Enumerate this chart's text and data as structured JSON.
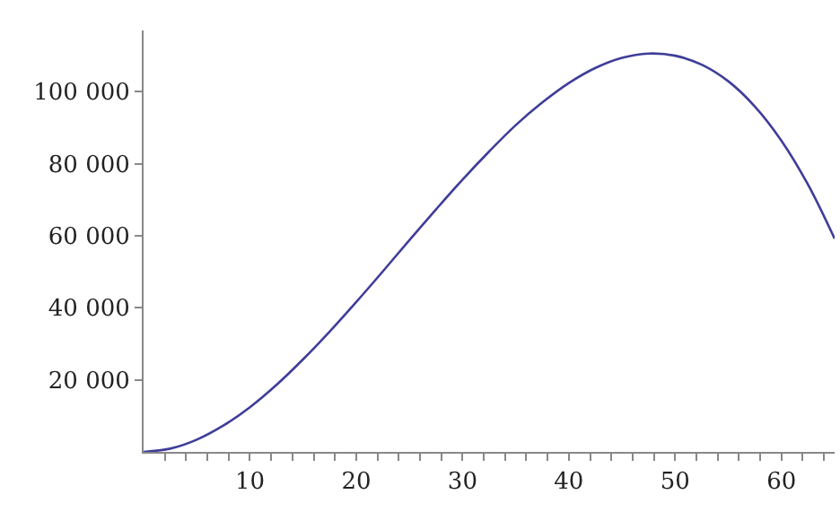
{
  "chart_data": {
    "type": "line",
    "x": [
      0,
      2.5,
      5,
      7.5,
      10,
      12.5,
      15,
      17.5,
      20,
      22.5,
      25,
      27.5,
      30,
      32.5,
      35,
      37.5,
      40,
      42.5,
      45,
      47.5,
      50,
      52.5,
      55,
      57.5,
      60,
      62.5,
      65
    ],
    "series": [
      {
        "color": "#3f3d99",
        "values": [
          0,
          900,
          3400,
          7300,
          12400,
          18600,
          25700,
          33400,
          41600,
          50100,
          58800,
          67300,
          75600,
          83400,
          90700,
          97000,
          102400,
          106600,
          109400,
          110600,
          110000,
          107500,
          102900,
          95900,
          86400,
          74200,
          59200
        ]
      }
    ],
    "xlim": [
      0,
      65
    ],
    "ylim": [
      0,
      117000
    ],
    "xticks": [
      {
        "value": 2,
        "label": null
      },
      {
        "value": 4,
        "label": null
      },
      {
        "value": 6,
        "label": null
      },
      {
        "value": 8,
        "label": null
      },
      10,
      {
        "value": 12,
        "label": null
      },
      {
        "value": 14,
        "label": null
      },
      {
        "value": 16,
        "label": null
      },
      {
        "value": 18,
        "label": null
      },
      20,
      {
        "value": 22,
        "label": null
      },
      {
        "value": 24,
        "label": null
      },
      {
        "value": 26,
        "label": null
      },
      {
        "value": 28,
        "label": null
      },
      30,
      {
        "value": 32,
        "label": null
      },
      {
        "value": 34,
        "label": null
      },
      {
        "value": 36,
        "label": null
      },
      {
        "value": 38,
        "label": null
      },
      40,
      {
        "value": 42,
        "label": null
      },
      {
        "value": 44,
        "label": null
      },
      {
        "value": 46,
        "label": null
      },
      {
        "value": 48,
        "label": null
      },
      50,
      {
        "value": 52,
        "label": null
      },
      {
        "value": 54,
        "label": null
      },
      {
        "value": 56,
        "label": null
      },
      {
        "value": 58,
        "label": null
      },
      60,
      {
        "value": 62,
        "label": null
      },
      {
        "value": 64,
        "label": null
      }
    ],
    "yticks": [
      {
        "value": 20000,
        "label": "20 000"
      },
      {
        "value": 40000,
        "label": "40 000"
      },
      {
        "value": 60000,
        "label": "60 000"
      },
      {
        "value": 80000,
        "label": "80 000"
      },
      {
        "value": 100000,
        "label": "100 000"
      }
    ],
    "marker": "none",
    "line_style": "solid"
  }
}
